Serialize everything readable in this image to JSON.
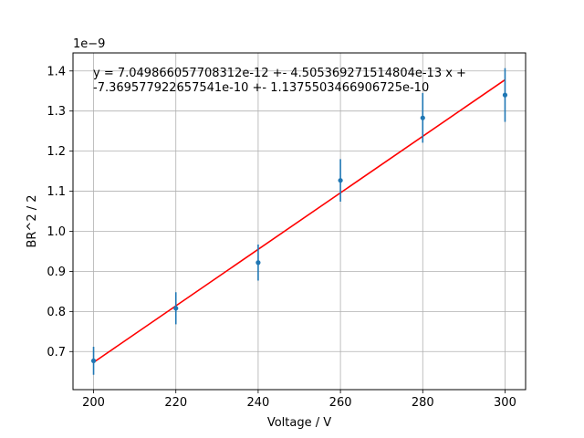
{
  "chart_data": {
    "type": "scatter",
    "xlabel": "Voltage / V",
    "ylabel": "BR^2 / 2",
    "y_offset_label": "1e−9",
    "xlim": [
      195,
      305
    ],
    "ylim": [
      0.605,
      1.445
    ],
    "grid": true,
    "x_ticks": [
      200,
      220,
      240,
      260,
      280,
      300
    ],
    "x_tick_labels": [
      "200",
      "220",
      "240",
      "260",
      "280",
      "300"
    ],
    "y_ticks": [
      0.7,
      0.8,
      0.9,
      1.0,
      1.1,
      1.2,
      1.3,
      1.4
    ],
    "y_tick_labels": [
      "0.7",
      "0.8",
      "0.9",
      "1.0",
      "1.1",
      "1.2",
      "1.3",
      "1.4"
    ],
    "annotation": {
      "line1": "y = 7.049866057708312e-12 +- 4.505369271514804e-13 x +",
      "line2": "-7.369577922657541e-10 +- 1.1375503466906725e-10"
    },
    "series": [
      {
        "type": "errorbar",
        "color": "#1f77b4",
        "points": [
          {
            "x": 200,
            "y": 0.677,
            "err": 0.035
          },
          {
            "x": 220,
            "y": 0.808,
            "err": 0.04
          },
          {
            "x": 240,
            "y": 0.922,
            "err": 0.045
          },
          {
            "x": 260,
            "y": 1.127,
            "err": 0.053
          },
          {
            "x": 280,
            "y": 1.283,
            "err": 0.062
          },
          {
            "x": 300,
            "y": 1.34,
            "err": 0.067
          }
        ]
      },
      {
        "type": "line",
        "color": "#ff0000",
        "x": [
          200,
          300
        ],
        "y": [
          0.673,
          1.378
        ]
      }
    ]
  }
}
